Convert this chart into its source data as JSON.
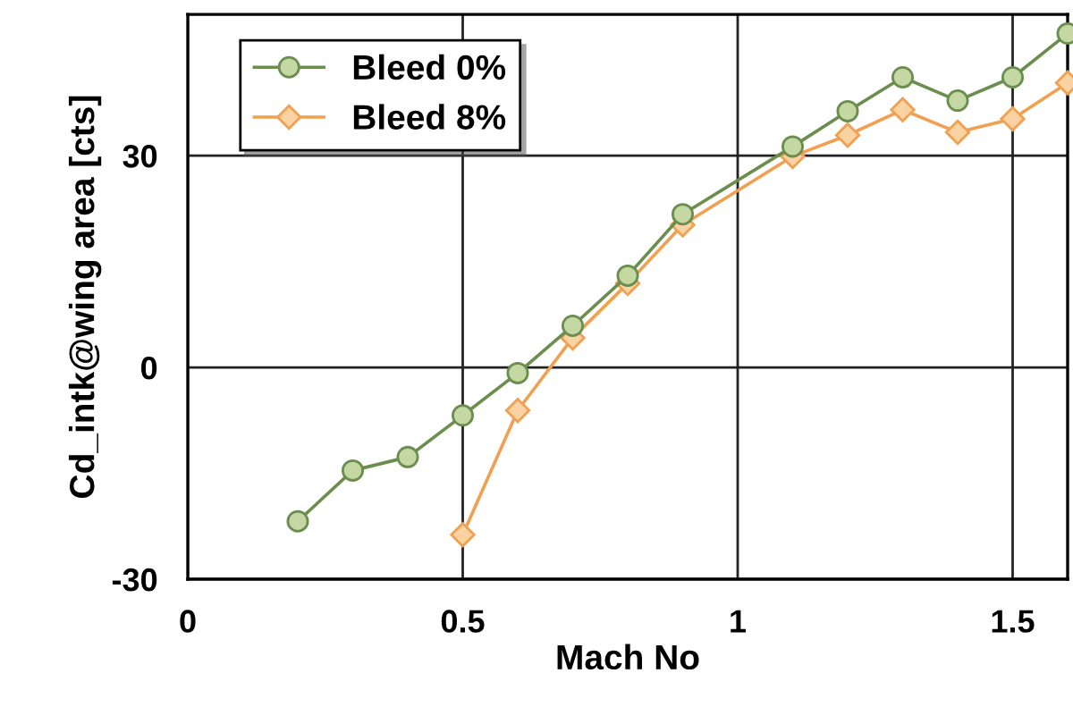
{
  "chart_data": {
    "type": "line",
    "xlabel": "Mach No",
    "ylabel": "Cd_intk@wing area [cts]",
    "xlim": [
      0,
      1.6
    ],
    "ylim": [
      -30,
      50
    ],
    "xticks": [
      0,
      0.5,
      1,
      1.5
    ],
    "yticks": [
      -30,
      0,
      30
    ],
    "grid": true,
    "legend": "top left",
    "line_style": "solid",
    "series": [
      {
        "name": "Bleed 0%",
        "color": "#6b8e4e",
        "marker": "circle",
        "x": [
          0.2,
          0.3,
          0.4,
          0.5,
          0.6,
          0.7,
          0.8,
          0.9,
          1.1,
          1.2,
          1.3,
          1.4,
          1.5,
          1.6
        ],
        "values": [
          -21.8,
          -14.6,
          -12.7,
          -6.8,
          -0.8,
          5.9,
          13.0,
          21.7,
          31.3,
          36.3,
          41.1,
          37.8,
          41.1,
          47.3
        ]
      },
      {
        "name": "Bleed 8%",
        "color": "#f0a050",
        "marker": "diamond",
        "x": [
          0.5,
          0.6,
          0.7,
          0.8,
          0.9,
          1.1,
          1.2,
          1.3,
          1.4,
          1.5,
          1.6
        ],
        "values": [
          -23.7,
          -6.1,
          4.2,
          11.9,
          20.2,
          29.9,
          32.9,
          36.5,
          33.3,
          35.2,
          40.3
        ]
      }
    ]
  }
}
